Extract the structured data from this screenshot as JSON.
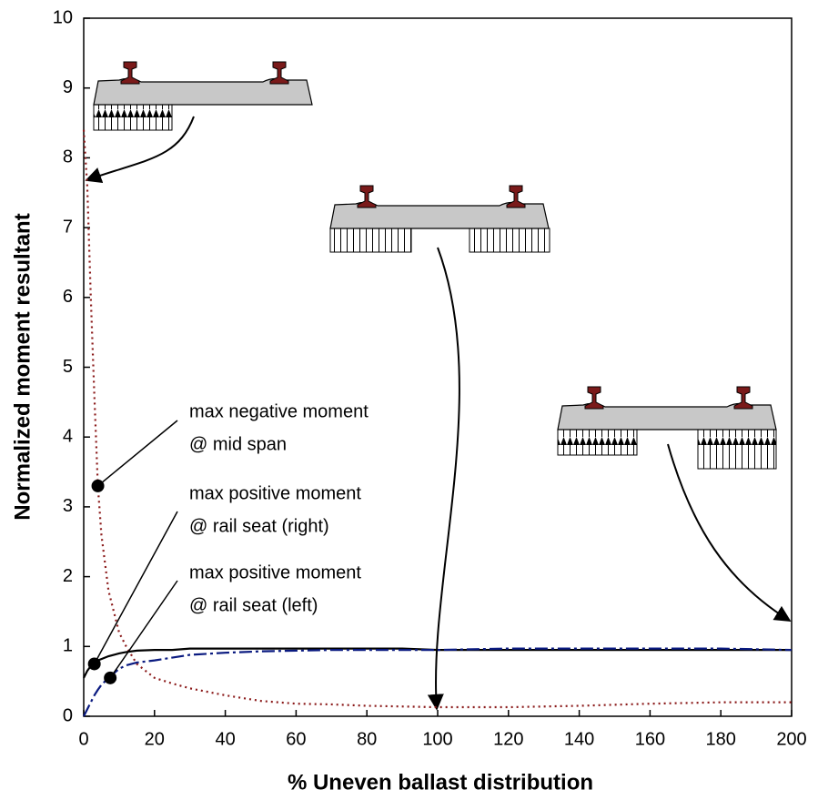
{
  "chart_data": {
    "type": "line",
    "xlabel": "% Uneven ballast distribution",
    "ylabel": "Normalized moment resultant",
    "xlim": [
      0,
      200
    ],
    "ylim": [
      0,
      10
    ],
    "xticks": [
      0,
      20,
      40,
      60,
      80,
      100,
      120,
      140,
      160,
      180,
      200
    ],
    "yticks": [
      0,
      1,
      2,
      3,
      4,
      5,
      6,
      7,
      8,
      9,
      10
    ],
    "x": [
      0,
      1,
      2,
      3,
      4,
      5,
      7,
      10,
      12,
      15,
      20,
      25,
      30,
      40,
      50,
      60,
      70,
      80,
      90,
      100,
      120,
      140,
      160,
      180,
      200
    ],
    "series": [
      {
        "color": "#8b1a1a",
        "dash": "2,4",
        "values": [
          8.4,
          7.6,
          6.0,
          4.6,
          3.3,
          2.6,
          1.8,
          1.2,
          1.0,
          0.75,
          0.55,
          0.47,
          0.4,
          0.3,
          0.22,
          0.18,
          0.17,
          0.15,
          0.14,
          0.13,
          0.13,
          0.15,
          0.18,
          0.2,
          0.2
        ]
      },
      {
        "color": "#000000",
        "dash": "none",
        "values": [
          0.55,
          0.65,
          0.72,
          0.78,
          0.8,
          0.82,
          0.86,
          0.9,
          0.92,
          0.94,
          0.95,
          0.95,
          0.97,
          0.97,
          0.97,
          0.97,
          0.97,
          0.97,
          0.97,
          0.95,
          0.95,
          0.95,
          0.95,
          0.95,
          0.95
        ]
      },
      {
        "color": "#0a1a80",
        "dash": "14,4,3,4",
        "values": [
          0,
          0.1,
          0.2,
          0.3,
          0.38,
          0.45,
          0.55,
          0.68,
          0.73,
          0.77,
          0.8,
          0.84,
          0.88,
          0.91,
          0.93,
          0.94,
          0.95,
          0.95,
          0.95,
          0.95,
          0.97,
          0.97,
          0.97,
          0.97,
          0.95
        ]
      }
    ],
    "annotations": [
      {
        "lines": [
          "max negative moment",
          "@ mid span"
        ],
        "x": 4,
        "y": 3.3
      },
      {
        "lines": [
          "max positive moment",
          "@ rail seat (right)"
        ],
        "x": 3,
        "y": 0.75
      },
      {
        "lines": [
          "max positive moment",
          "@ rail seat (left)"
        ],
        "x": 7.5,
        "y": 0.55
      }
    ]
  }
}
